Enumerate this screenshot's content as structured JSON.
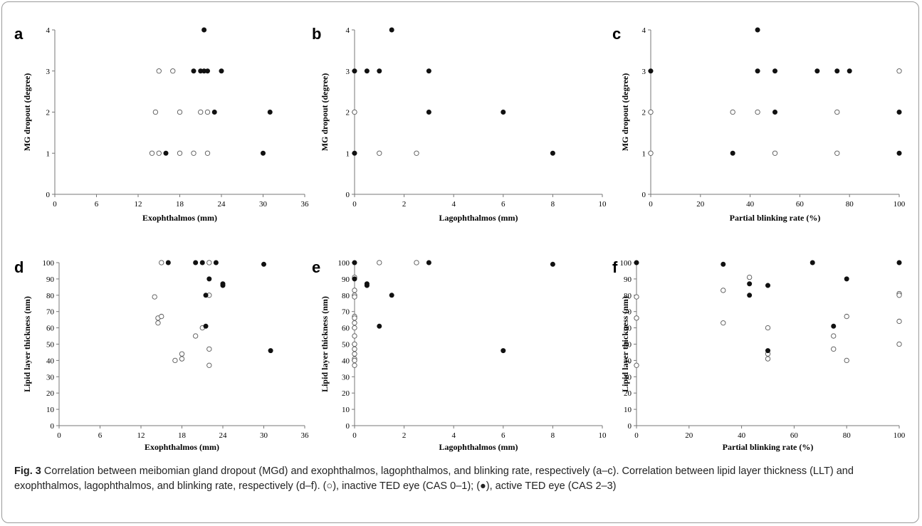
{
  "figure": {
    "caption_label": "Fig. 3",
    "caption_text": "Correlation between meibomian gland dropout (MGd) and exophthalmos, lagophthalmos, and blinking rate, respectively (a–c). Correlation between lipid layer thickness (LLT) and exophthalmos, lagophthalmos, and blinking rate, respectively (d–f). (○), inactive TED eye (CAS 0–1); (●), active TED eye (CAS 2–3)"
  },
  "chart_data": [
    {
      "panel": "a",
      "type": "scatter",
      "xlabel": "Exophthalmos (mm)",
      "ylabel": "MG dropout (degree)",
      "xlim": [
        0,
        36
      ],
      "ylim": [
        0,
        4
      ],
      "xticks": [
        0,
        6,
        12,
        18,
        24,
        30,
        36
      ],
      "yticks": [
        0,
        1,
        2,
        3,
        4
      ],
      "grid": false,
      "series": [
        {
          "marker": "open",
          "points": [
            [
              14,
              1
            ],
            [
              15,
              1
            ],
            [
              18,
              1
            ],
            [
              20,
              1
            ],
            [
              22,
              1
            ],
            [
              14.5,
              2
            ],
            [
              18,
              2
            ],
            [
              21,
              2
            ],
            [
              22,
              2
            ],
            [
              15,
              3
            ],
            [
              17,
              3
            ]
          ]
        },
        {
          "marker": "filled",
          "points": [
            [
              16,
              1
            ],
            [
              30,
              1
            ],
            [
              23,
              2
            ],
            [
              31,
              2
            ],
            [
              20,
              3
            ],
            [
              21,
              3
            ],
            [
              21.5,
              3
            ],
            [
              22,
              3
            ],
            [
              24,
              3
            ],
            [
              21.5,
              4
            ]
          ]
        }
      ]
    },
    {
      "panel": "b",
      "type": "scatter",
      "xlabel": "Lagophthalmos (mm)",
      "ylabel": "MG dropout (degree)",
      "xlim": [
        0,
        10
      ],
      "ylim": [
        0,
        4
      ],
      "xticks": [
        0,
        2,
        4,
        6,
        8,
        10
      ],
      "yticks": [
        0,
        1,
        2,
        3,
        4
      ],
      "grid": false,
      "series": [
        {
          "marker": "open",
          "points": [
            [
              0,
              2
            ],
            [
              1,
              1
            ],
            [
              2.5,
              1
            ]
          ]
        },
        {
          "marker": "filled",
          "points": [
            [
              0,
              1
            ],
            [
              0,
              3
            ],
            [
              0.5,
              3
            ],
            [
              1,
              3
            ],
            [
              1.5,
              4
            ],
            [
              3,
              3
            ],
            [
              3,
              2
            ],
            [
              6,
              2
            ],
            [
              8,
              1
            ]
          ]
        }
      ]
    },
    {
      "panel": "c",
      "type": "scatter",
      "xlabel": "Partial blinking rate (%)",
      "ylabel": "MG dropout (degree)",
      "xlim": [
        0,
        100
      ],
      "ylim": [
        0,
        4
      ],
      "xticks": [
        0,
        20,
        40,
        60,
        80,
        100
      ],
      "yticks": [
        0,
        1,
        2,
        3,
        4
      ],
      "grid": false,
      "series": [
        {
          "marker": "open",
          "points": [
            [
              0,
              1
            ],
            [
              0,
              2
            ],
            [
              33,
              2
            ],
            [
              43,
              2
            ],
            [
              50,
              1
            ],
            [
              75,
              2
            ],
            [
              75,
              1
            ],
            [
              100,
              3
            ]
          ]
        },
        {
          "marker": "filled",
          "points": [
            [
              0,
              3
            ],
            [
              33,
              1
            ],
            [
              43,
              4
            ],
            [
              43,
              3
            ],
            [
              50,
              3
            ],
            [
              50,
              2
            ],
            [
              67,
              3
            ],
            [
              75,
              3
            ],
            [
              80,
              3
            ],
            [
              100,
              2
            ],
            [
              100,
              1
            ]
          ]
        }
      ]
    },
    {
      "panel": "d",
      "type": "scatter",
      "xlabel": "Exophthalmos (mm)",
      "ylabel": "Lipid layer thickness (nm)",
      "xlim": [
        0,
        36
      ],
      "ylim": [
        0,
        100
      ],
      "xticks": [
        0,
        6,
        12,
        18,
        24,
        30,
        36
      ],
      "yticks": [
        0,
        10,
        20,
        30,
        40,
        50,
        60,
        70,
        80,
        90,
        100
      ],
      "grid": false,
      "series": [
        {
          "marker": "open",
          "points": [
            [
              15,
              100
            ],
            [
              22,
              100
            ],
            [
              14,
              79
            ],
            [
              22,
              80
            ],
            [
              14.5,
              66
            ],
            [
              15,
              67
            ],
            [
              14.5,
              63
            ],
            [
              21,
              60
            ],
            [
              20,
              55
            ],
            [
              22,
              47
            ],
            [
              18,
              44
            ],
            [
              18,
              41
            ],
            [
              17,
              40
            ],
            [
              22,
              37
            ]
          ]
        },
        {
          "marker": "filled",
          "points": [
            [
              16,
              100
            ],
            [
              20,
              100
            ],
            [
              21,
              100
            ],
            [
              23,
              100
            ],
            [
              30,
              99
            ],
            [
              22,
              90
            ],
            [
              24,
              87
            ],
            [
              24,
              86
            ],
            [
              21.5,
              80
            ],
            [
              21.5,
              61
            ],
            [
              31,
              46
            ]
          ]
        }
      ]
    },
    {
      "panel": "e",
      "type": "scatter",
      "xlabel": "Lagophthalmos (mm)",
      "ylabel": "Lipid layer thickness (nm)",
      "xlim": [
        0,
        10
      ],
      "ylim": [
        0,
        100
      ],
      "xticks": [
        0,
        2,
        4,
        6,
        8,
        10
      ],
      "yticks": [
        0,
        10,
        20,
        30,
        40,
        50,
        60,
        70,
        80,
        90,
        100
      ],
      "grid": false,
      "series": [
        {
          "marker": "open",
          "points": [
            [
              0,
              91
            ],
            [
              0,
              83
            ],
            [
              0,
              80
            ],
            [
              0,
              79
            ],
            [
              0,
              67
            ],
            [
              0,
              66
            ],
            [
              0,
              63
            ],
            [
              0,
              60
            ],
            [
              0,
              55
            ],
            [
              0,
              50
            ],
            [
              0,
              47
            ],
            [
              0,
              44
            ],
            [
              0,
              41
            ],
            [
              0,
              40
            ],
            [
              0,
              37
            ],
            [
              1,
              100
            ],
            [
              2.5,
              100
            ]
          ]
        },
        {
          "marker": "filled",
          "points": [
            [
              0,
              100
            ],
            [
              0,
              90
            ],
            [
              0.5,
              87
            ],
            [
              0.5,
              86
            ],
            [
              1.5,
              80
            ],
            [
              1,
              61
            ],
            [
              3,
              100
            ],
            [
              6,
              46
            ],
            [
              8,
              99
            ]
          ]
        }
      ]
    },
    {
      "panel": "f",
      "type": "scatter",
      "xlabel": "Partial blinking rate (%)",
      "ylabel": "Lipid layer thickness (nm)",
      "xlim": [
        0,
        100
      ],
      "ylim": [
        0,
        100
      ],
      "xticks": [
        0,
        20,
        40,
        60,
        80,
        100
      ],
      "yticks": [
        0,
        10,
        20,
        30,
        40,
        50,
        60,
        70,
        80,
        90,
        100
      ],
      "grid": false,
      "series": [
        {
          "marker": "open",
          "points": [
            [
              0,
              79
            ],
            [
              0,
              66
            ],
            [
              0,
              37
            ],
            [
              33,
              83
            ],
            [
              33,
              63
            ],
            [
              43,
              91
            ],
            [
              50,
              60
            ],
            [
              50,
              44
            ],
            [
              50,
              41
            ],
            [
              75,
              55
            ],
            [
              75,
              47
            ],
            [
              80,
              67
            ],
            [
              80,
              40
            ],
            [
              100,
              81
            ],
            [
              100,
              80
            ],
            [
              100,
              64
            ],
            [
              100,
              50
            ]
          ]
        },
        {
          "marker": "filled",
          "points": [
            [
              0,
              100
            ],
            [
              33,
              99
            ],
            [
              43,
              87
            ],
            [
              43,
              80
            ],
            [
              50,
              86
            ],
            [
              50,
              46
            ],
            [
              67,
              100
            ],
            [
              75,
              61
            ],
            [
              80,
              90
            ],
            [
              100,
              100
            ]
          ]
        }
      ]
    }
  ]
}
